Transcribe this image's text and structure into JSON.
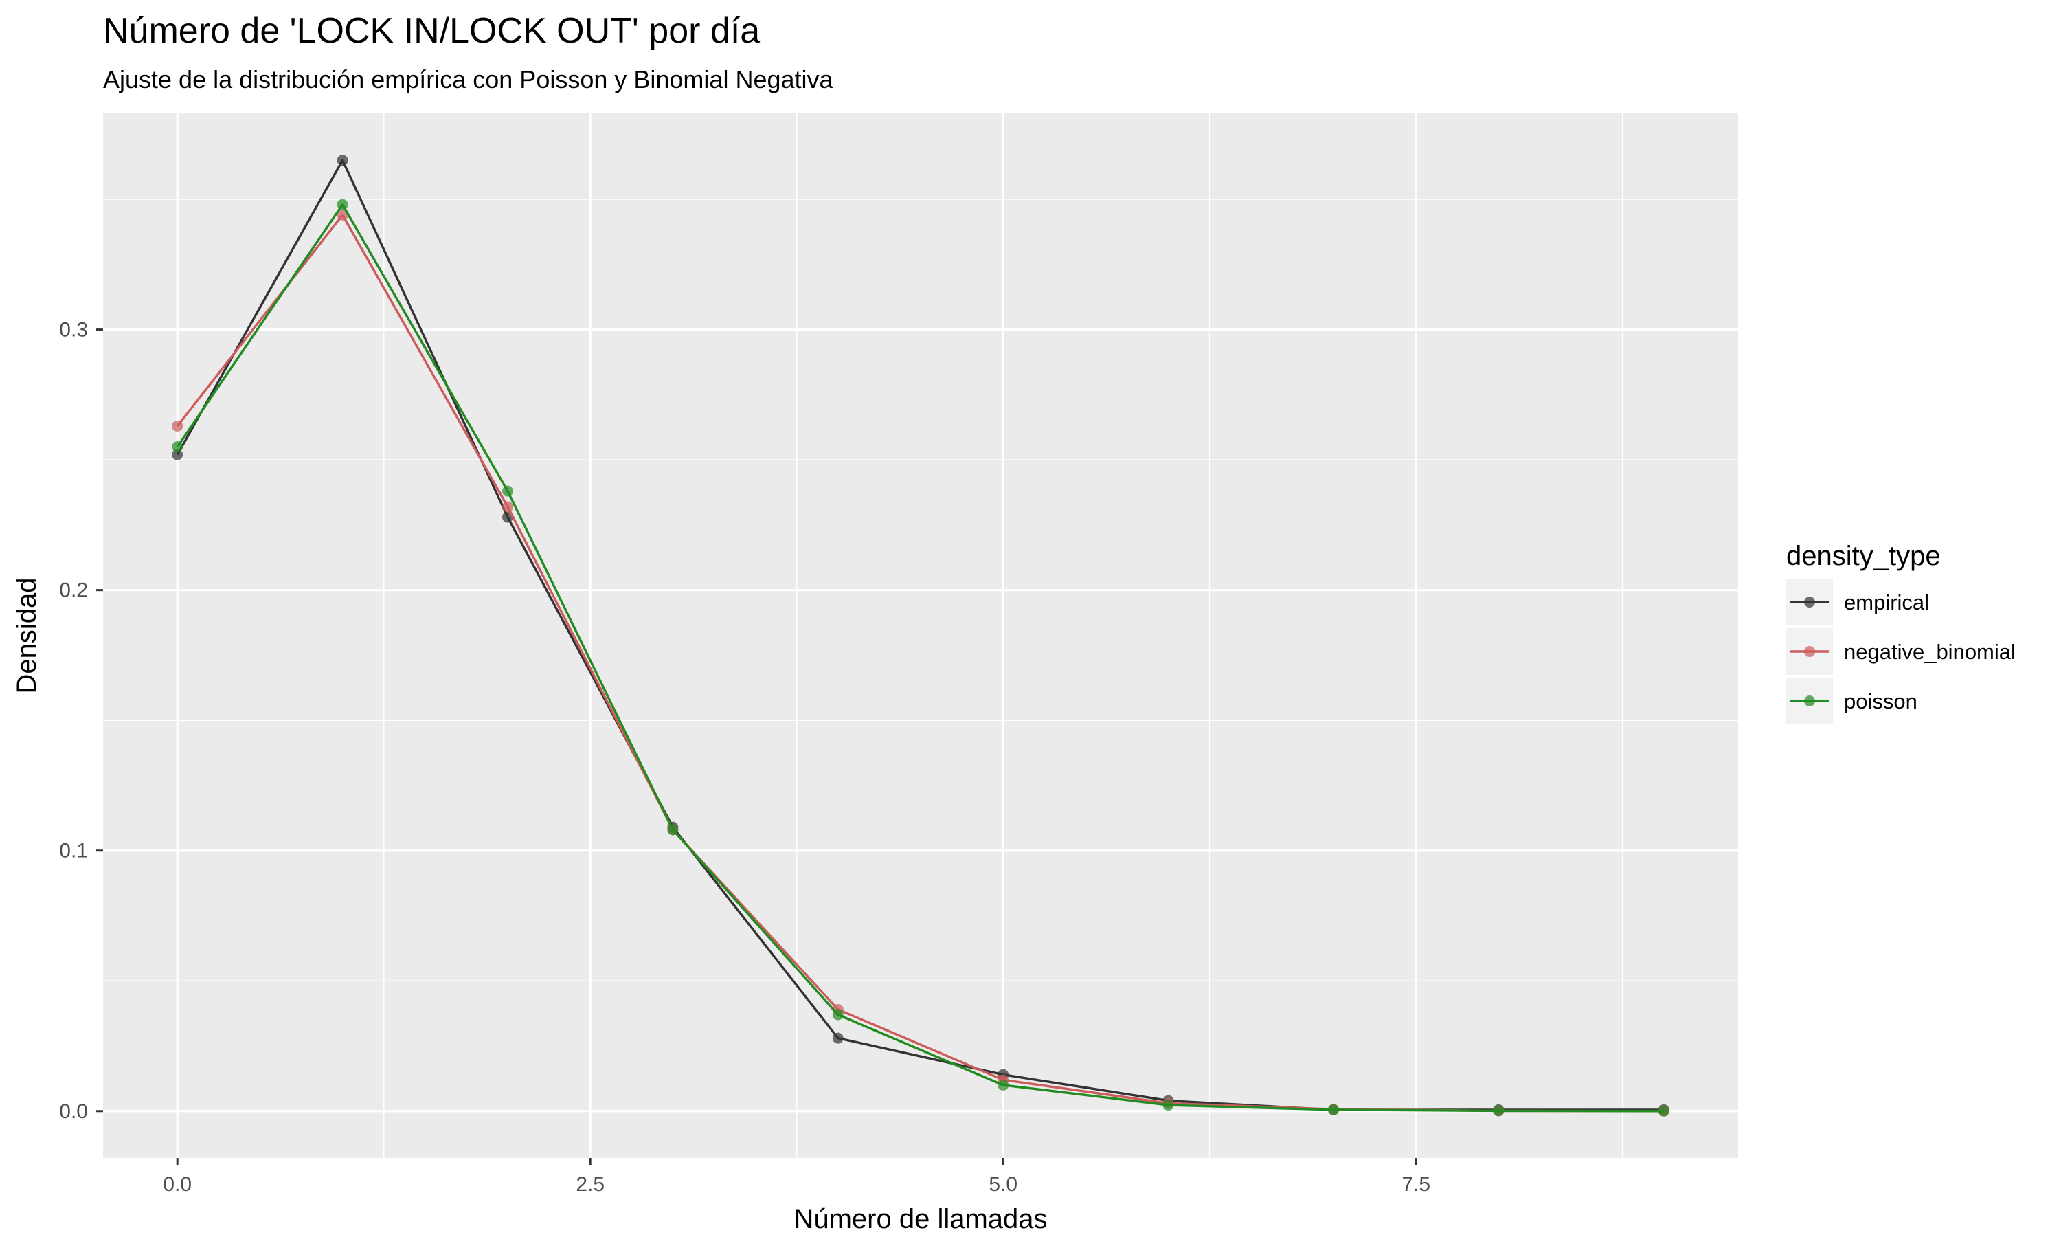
{
  "chart_data": {
    "type": "line",
    "title": "Número de 'LOCK IN/LOCK OUT' por día",
    "subtitle": "Ajuste de la distribución empírica con Poisson y Binomial Negativa",
    "xlabel": "Número de llamadas",
    "ylabel": "Densidad",
    "xlim": [
      -0.45,
      9.45
    ],
    "ylim": [
      -0.018,
      0.383
    ],
    "x_ticks": [
      0,
      2.5,
      5,
      7.5
    ],
    "x_tick_labels": [
      "0.0",
      "2.5",
      "5.0",
      "7.5"
    ],
    "x_minor_ticks": [
      1.25,
      3.75,
      6.25,
      8.75
    ],
    "y_ticks": [
      0,
      0.1,
      0.2,
      0.3
    ],
    "y_tick_labels": [
      "0.0",
      "0.1",
      "0.2",
      "0.3"
    ],
    "y_minor_ticks": [
      0.05,
      0.15,
      0.25,
      0.35
    ],
    "grid": true,
    "legend_title": "density_type",
    "legend_position": "right",
    "series": [
      {
        "name": "empirical",
        "color": "#333333",
        "x": [
          0,
          1,
          2,
          3,
          4,
          5,
          6,
          7,
          8,
          9
        ],
        "values": [
          0.252,
          0.365,
          0.228,
          0.109,
          0.028,
          0.014,
          0.004,
          0.0005,
          0.0005,
          0.0005
        ]
      },
      {
        "name": "negative_binomial",
        "color": "#cd5c5c",
        "x": [
          0,
          1,
          2,
          3,
          4,
          5,
          6,
          7,
          8,
          9
        ],
        "values": [
          0.263,
          0.344,
          0.232,
          0.108,
          0.039,
          0.012,
          0.003,
          0.0007,
          0.0001,
          0.0
        ]
      },
      {
        "name": "poisson",
        "color": "#228b22",
        "x": [
          0,
          1,
          2,
          3,
          4,
          5,
          6,
          7,
          8,
          9
        ],
        "values": [
          0.255,
          0.348,
          0.238,
          0.108,
          0.037,
          0.01,
          0.0023,
          0.0005,
          0.0001,
          0.0
        ]
      }
    ]
  }
}
